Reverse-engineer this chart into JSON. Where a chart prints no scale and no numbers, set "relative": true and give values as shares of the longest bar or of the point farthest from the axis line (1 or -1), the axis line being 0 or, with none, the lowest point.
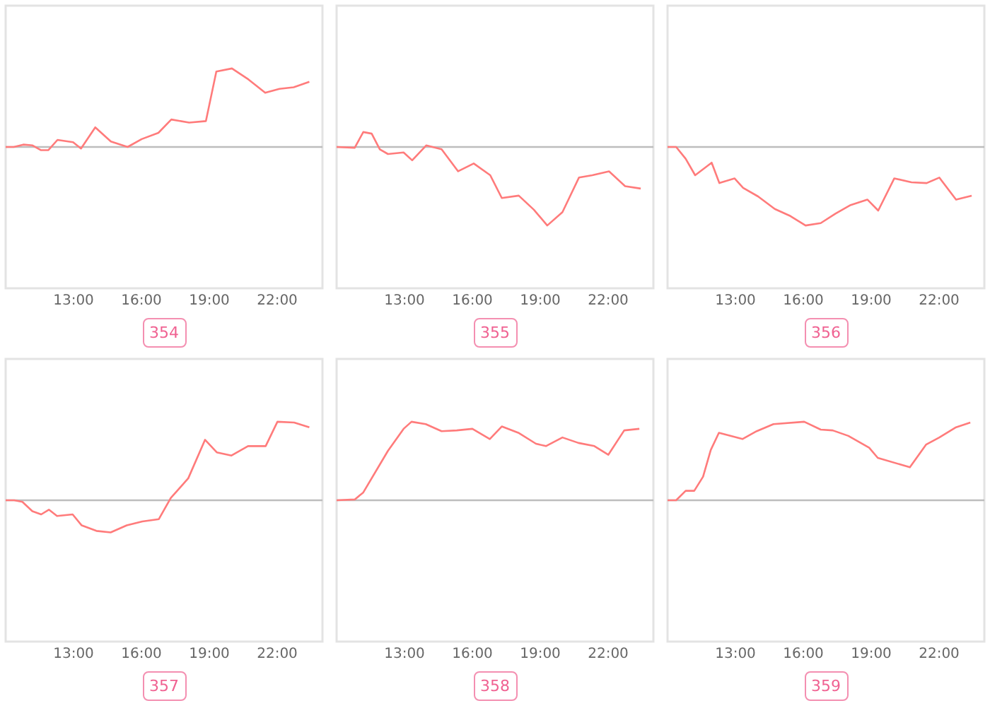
{
  "chart_data": [
    {
      "type": "line",
      "title": "354",
      "relative": true,
      "tick_labels": "x",
      "xlim": [
        10,
        24
      ],
      "xticks": [
        {
          "value": 13,
          "label": "13:00"
        },
        {
          "value": 16,
          "label": "16:00"
        },
        {
          "value": 19,
          "label": "19:00"
        },
        {
          "value": 22,
          "label": "22:00"
        }
      ],
      "series": [
        {
          "color": "#ff7b7b",
          "x": [
            10.0,
            10.36,
            10.78,
            11.19,
            11.55,
            11.89,
            12.29,
            12.98,
            13.33,
            13.96,
            14.65,
            15.39,
            16.01,
            16.75,
            17.32,
            18.11,
            18.85,
            19.31,
            20.0,
            20.73,
            21.47,
            22.1,
            22.73,
            23.42
          ],
          "values": [
            0,
            0,
            0.03,
            0.02,
            -0.04,
            -0.04,
            0.09,
            0.06,
            -0.02,
            0.25,
            0.07,
            0,
            0.1,
            0.18,
            0.35,
            0.31,
            0.33,
            0.96,
            1,
            0.86,
            0.69,
            0.74,
            0.76,
            0.83
          ]
        }
      ]
    },
    {
      "type": "line",
      "title": "355",
      "relative": true,
      "tick_labels": "x",
      "xlim": [
        10,
        24
      ],
      "xticks": [
        {
          "value": 13,
          "label": "13:00"
        },
        {
          "value": 16,
          "label": "16:00"
        },
        {
          "value": 19,
          "label": "19:00"
        },
        {
          "value": 22,
          "label": "22:00"
        }
      ],
      "series": [
        {
          "color": "#ff7b7b",
          "x": [
            10.0,
            10.8,
            11.18,
            11.55,
            11.91,
            12.27,
            12.96,
            13.34,
            13.96,
            14.64,
            15.37,
            16.06,
            16.79,
            17.3,
            18.05,
            18.72,
            19.31,
            19.98,
            20.71,
            21.3,
            22.04,
            22.75,
            23.44
          ],
          "values": [
            0,
            -0.01,
            0.19,
            0.17,
            -0.03,
            -0.09,
            -0.07,
            -0.17,
            0.02,
            -0.03,
            -0.31,
            -0.21,
            -0.36,
            -0.65,
            -0.62,
            -0.8,
            -1,
            -0.83,
            -0.39,
            -0.36,
            -0.31,
            -0.5,
            -0.53
          ]
        }
      ]
    },
    {
      "type": "line",
      "title": "356",
      "relative": true,
      "tick_labels": "x",
      "xlim": [
        10,
        24
      ],
      "xticks": [
        {
          "value": 13,
          "label": "13:00"
        },
        {
          "value": 16,
          "label": "16:00"
        },
        {
          "value": 19,
          "label": "19:00"
        },
        {
          "value": 22,
          "label": "22:00"
        }
      ],
      "series": [
        {
          "color": "#ff7b7b",
          "x": [
            10.0,
            10.38,
            10.8,
            11.22,
            11.95,
            12.29,
            12.96,
            13.34,
            14.0,
            14.74,
            15.43,
            16.1,
            16.77,
            17.42,
            18.09,
            18.83,
            19.31,
            20.02,
            20.78,
            21.45,
            22.01,
            22.75,
            23.44
          ],
          "values": [
            0,
            0,
            -0.15,
            -0.36,
            -0.2,
            -0.46,
            -0.4,
            -0.52,
            -0.63,
            -0.79,
            -0.88,
            -1,
            -0.97,
            -0.85,
            -0.74,
            -0.67,
            -0.81,
            -0.4,
            -0.45,
            -0.46,
            -0.39,
            -0.67,
            -0.62
          ]
        }
      ]
    },
    {
      "type": "line",
      "title": "357",
      "relative": true,
      "tick_labels": "x",
      "xlim": [
        10,
        24
      ],
      "xticks": [
        {
          "value": 13,
          "label": "13:00"
        },
        {
          "value": 16,
          "label": "16:00"
        },
        {
          "value": 19,
          "label": "19:00"
        },
        {
          "value": 22,
          "label": "22:00"
        }
      ],
      "series": [
        {
          "color": "#ff7b7b",
          "x": [
            10.0,
            10.38,
            10.74,
            11.18,
            11.57,
            11.91,
            12.27,
            12.96,
            13.36,
            14.01,
            14.64,
            15.35,
            16.04,
            16.77,
            17.3,
            18.07,
            18.81,
            19.33,
            19.98,
            20.71,
            21.49,
            22.01,
            22.75,
            23.42
          ],
          "values": [
            0,
            0,
            -0.02,
            -0.14,
            -0.18,
            -0.12,
            -0.2,
            -0.18,
            -0.32,
            -0.39,
            -0.41,
            -0.32,
            -0.27,
            -0.24,
            0.03,
            0.28,
            0.77,
            0.61,
            0.57,
            0.69,
            0.69,
            1,
            0.99,
            0.93
          ]
        }
      ]
    },
    {
      "type": "line",
      "title": "358",
      "relative": true,
      "tick_labels": "x",
      "xlim": [
        10,
        24
      ],
      "xticks": [
        {
          "value": 13,
          "label": "13:00"
        },
        {
          "value": 16,
          "label": "16:00"
        },
        {
          "value": 19,
          "label": "19:00"
        },
        {
          "value": 22,
          "label": "22:00"
        }
      ],
      "series": [
        {
          "color": "#ff7b7b",
          "x": [
            10.0,
            10.8,
            11.18,
            12.27,
            12.96,
            13.31,
            13.94,
            14.64,
            15.31,
            16.0,
            16.77,
            17.3,
            18.03,
            18.81,
            19.25,
            19.98,
            20.69,
            21.39,
            22.01,
            22.71,
            23.38
          ],
          "values": [
            0,
            0.01,
            0.1,
            0.63,
            0.91,
            1,
            0.97,
            0.88,
            0.89,
            0.91,
            0.78,
            0.94,
            0.86,
            0.72,
            0.69,
            0.8,
            0.73,
            0.69,
            0.58,
            0.89,
            0.91
          ]
        }
      ]
    },
    {
      "type": "line",
      "title": "359",
      "relative": true,
      "tick_labels": "x",
      "xlim": [
        10,
        24
      ],
      "xticks": [
        {
          "value": 13,
          "label": "13:00"
        },
        {
          "value": 16,
          "label": "16:00"
        },
        {
          "value": 19,
          "label": "19:00"
        },
        {
          "value": 22,
          "label": "22:00"
        }
      ],
      "series": [
        {
          "color": "#ff7b7b",
          "x": [
            10.0,
            10.38,
            10.8,
            11.18,
            11.57,
            11.91,
            12.27,
            13.31,
            13.94,
            14.68,
            16.04,
            16.77,
            17.3,
            17.99,
            18.91,
            19.29,
            20.71,
            21.43,
            22.01,
            22.75,
            23.38
          ],
          "values": [
            0,
            0,
            0.12,
            0.12,
            0.3,
            0.64,
            0.86,
            0.78,
            0.88,
            0.97,
            1,
            0.9,
            0.89,
            0.82,
            0.67,
            0.54,
            0.42,
            0.71,
            0.8,
            0.93,
            0.99
          ]
        }
      ]
    }
  ]
}
